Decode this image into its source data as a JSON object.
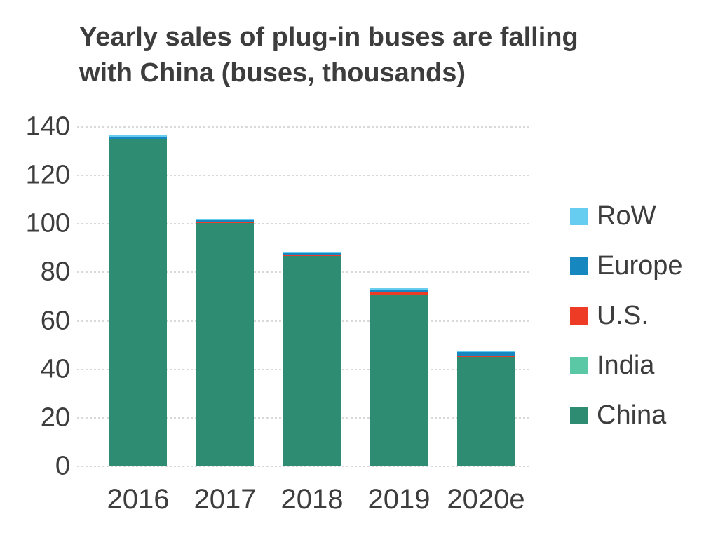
{
  "header": {
    "title_line1": "Yearly sales of plug-in buses are falling",
    "title_line2": "with China (buses, thousands)"
  },
  "chart_data": {
    "type": "bar",
    "stacked": true,
    "title": "Yearly sales of plug-in buses are falling with China (buses, thousands)",
    "categories": [
      "2016",
      "2017",
      "2018",
      "2019",
      "2020e"
    ],
    "series": [
      {
        "name": "China",
        "color": "#2E8C72",
        "values": [
          135.0,
          100.4,
          86.7,
          71.0,
          45.1
        ]
      },
      {
        "name": "India",
        "color": "#5BC8A5",
        "values": [
          0.0,
          0.0,
          0.0,
          0.0,
          0.0
        ]
      },
      {
        "name": "U.S.",
        "color": "#EE3B26",
        "values": [
          0.2,
          0.6,
          0.7,
          0.6,
          0.2
        ]
      },
      {
        "name": "Europe",
        "color": "#1787BF",
        "values": [
          0.9,
          0.6,
          0.6,
          1.4,
          2.0
        ]
      },
      {
        "name": "RoW",
        "color": "#66CCF0",
        "values": [
          0.4,
          0.4,
          0.4,
          0.6,
          0.5
        ]
      }
    ],
    "totals": [
      136.5,
      102.0,
      88.4,
      73.6,
      47.8
    ],
    "legend": [
      "RoW",
      "Europe",
      "U.S.",
      "India",
      "China"
    ],
    "legend_position": "right",
    "xlabel": "",
    "ylabel": "",
    "yticks": [
      0,
      20,
      40,
      60,
      80,
      100,
      120,
      140
    ],
    "ylim": [
      0,
      140
    ],
    "grid": "horizontal-dotted"
  },
  "colors": {
    "text": "#3D3D3D",
    "gridline": "#D9D9D9",
    "background": "#FFFFFF"
  }
}
